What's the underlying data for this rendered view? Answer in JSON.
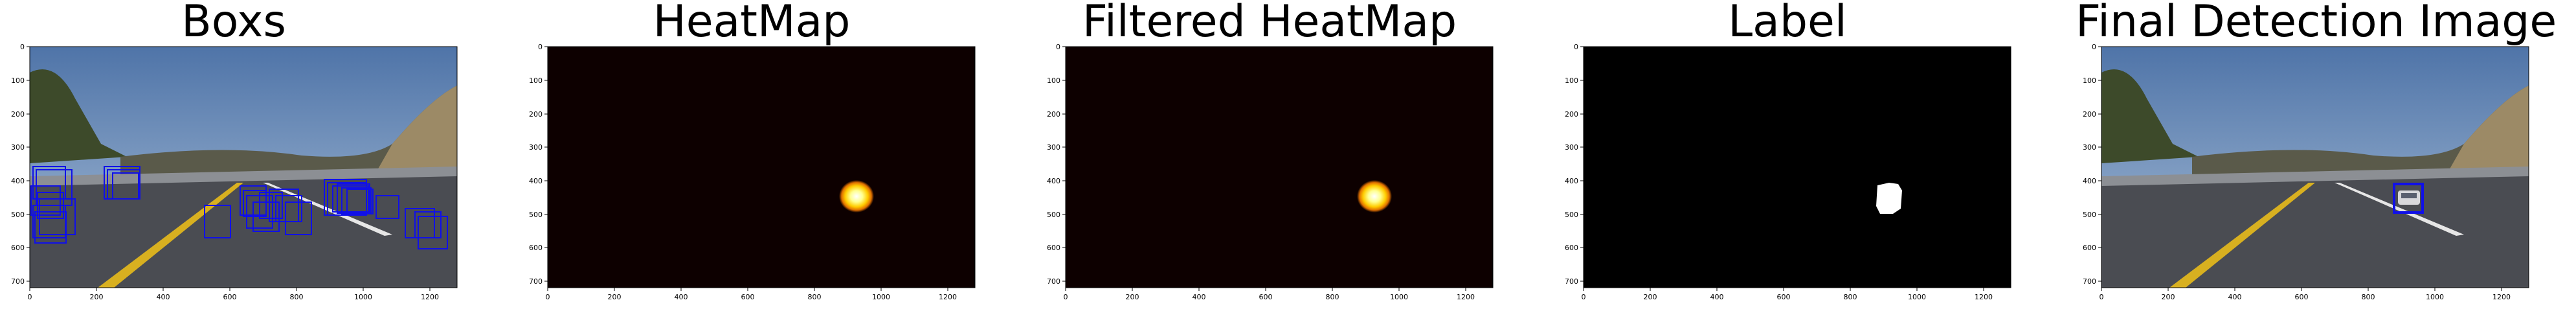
{
  "figure": {
    "panels": [
      {
        "id": "boxs",
        "title": "Boxs",
        "kind": "road-with-boxes",
        "x_ticks": [
          "0",
          "200",
          "400",
          "600",
          "800",
          "1000",
          "1200"
        ],
        "y_ticks": [
          "0",
          "100",
          "200",
          "300",
          "400",
          "500",
          "600",
          "700"
        ]
      },
      {
        "id": "heatmap",
        "title": "HeatMap",
        "kind": "heatmap",
        "x_ticks": [
          "0",
          "200",
          "400",
          "600",
          "800",
          "1000",
          "1200"
        ],
        "y_ticks": [
          "0",
          "100",
          "200",
          "300",
          "400",
          "500",
          "600",
          "700"
        ]
      },
      {
        "id": "filtered-heatmap",
        "title": "Filtered HeatMap",
        "kind": "heatmap",
        "x_ticks": [
          "0",
          "200",
          "400",
          "600",
          "800",
          "1000",
          "1200"
        ],
        "y_ticks": [
          "0",
          "100",
          "200",
          "300",
          "400",
          "500",
          "600",
          "700"
        ]
      },
      {
        "id": "label",
        "title": "Label",
        "kind": "label",
        "x_ticks": [
          "0",
          "200",
          "400",
          "600",
          "800",
          "1000",
          "1200"
        ],
        "y_ticks": [
          "0",
          "100",
          "200",
          "300",
          "400",
          "500",
          "600",
          "700"
        ]
      },
      {
        "id": "final-detection",
        "title": "Final Detection Image",
        "kind": "road-with-detection",
        "x_ticks": [
          "0",
          "200",
          "400",
          "600",
          "800",
          "1000",
          "1200"
        ],
        "y_ticks": [
          "0",
          "100",
          "200",
          "300",
          "400",
          "500",
          "600",
          "700"
        ]
      }
    ],
    "colors": {
      "heatmap_background": "#0d0000",
      "heat_core": "#ffffff",
      "heat_mid": "#ffdc00",
      "heat_edge": "#c83c00",
      "label_background": "#000000",
      "label_blob": "#ffffff",
      "box_color": "#1010e8",
      "sky": "#6f8fb8",
      "road": "#4a4c52",
      "hill": "#8a7a5a",
      "lane_yellow": "#d8b020"
    }
  }
}
